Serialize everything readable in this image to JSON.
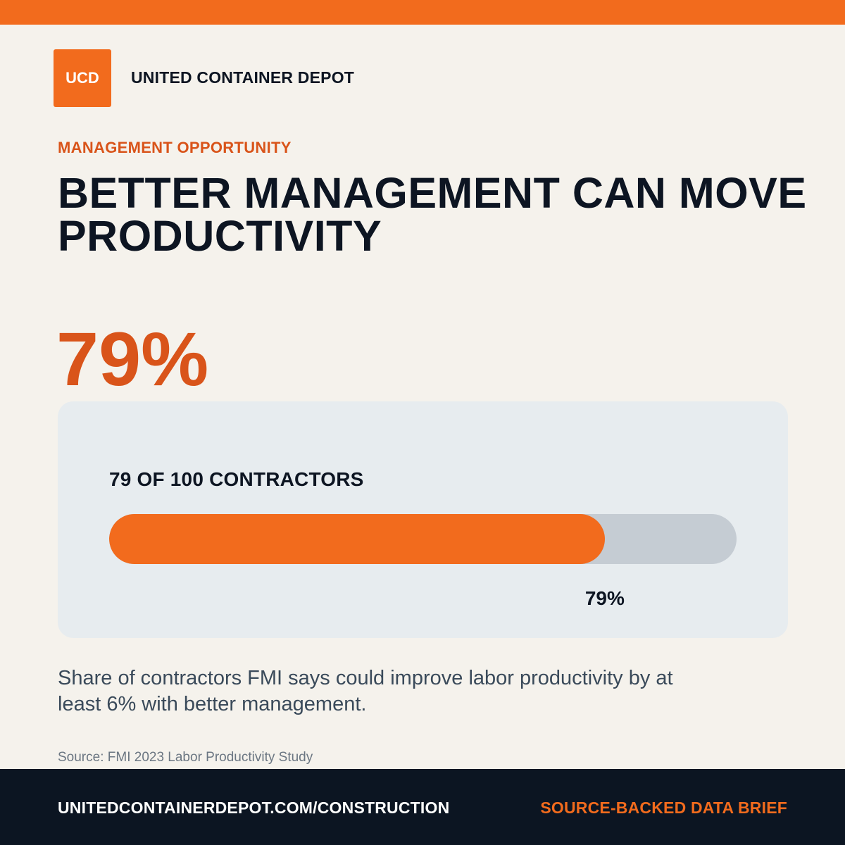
{
  "brand": {
    "logo_text": "UCD",
    "name": "UNITED CONTAINER DEPOT",
    "accent_color": "#f26b1d"
  },
  "eyebrow": "MANAGEMENT OPPORTUNITY",
  "headline_lines": [
    "BETTER MANAGEMENT CAN MOVE",
    "PRODUCTIVITY"
  ],
  "big_stat": "79%",
  "progress": {
    "label": "79 OF 100 CONTRACTORS",
    "value_label": "79%",
    "fraction": 0.79
  },
  "description": "Share of contractors FMI says could improve labor productivity by at least 6% with better management.",
  "source": "Source: FMI 2023 Labor Productivity Study",
  "footer": {
    "url": "UNITEDCONTAINERDEPOT.COM/CONSTRUCTION",
    "tag": "SOURCE-BACKED DATA BRIEF"
  }
}
